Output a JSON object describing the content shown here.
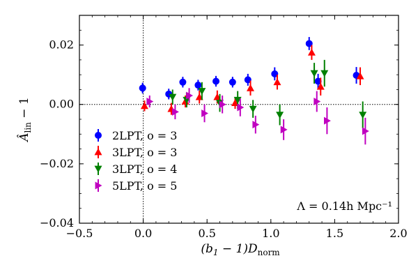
{
  "chart_data": {
    "type": "scatter",
    "title": "",
    "xlabel": "(b₁ − 1)D_norm",
    "xlabel_parts": {
      "lead": "(b",
      "sub1": "1",
      "mid": " − 1)D",
      "sub2": "norm"
    },
    "ylabel": "Â_lin − 1",
    "ylabel_parts": {
      "lead": "Â",
      "sub": "lin",
      "tail": " − 1"
    },
    "xlim": [
      -0.5,
      2.0
    ],
    "ylim": [
      -0.04,
      0.03
    ],
    "xticks": [
      -0.5,
      0.0,
      0.5,
      1.0,
      1.5,
      2.0
    ],
    "xtick_labels": [
      "−0.5",
      "0.0",
      "0.5",
      "1.0",
      "1.5",
      "2.0"
    ],
    "yticks": [
      -0.04,
      -0.02,
      0.0,
      0.02
    ],
    "ytick_labels": [
      "−0.04",
      "−0.02",
      "0.00",
      "0.02"
    ],
    "hline": 0.0,
    "vline": 0.0,
    "annotation": "Λ = 0.14h Mpc⁻¹",
    "legend_position": "lower-left",
    "series": [
      {
        "name": "2LPT, o = 3",
        "color": "#0000ff",
        "marker": "circle",
        "points": [
          {
            "x": -0.005,
            "y": 0.0055,
            "err": 0.0018
          },
          {
            "x": 0.2,
            "y": 0.0035,
            "err": 0.0018
          },
          {
            "x": 0.31,
            "y": 0.0075,
            "err": 0.0018
          },
          {
            "x": 0.43,
            "y": 0.0065,
            "err": 0.0018
          },
          {
            "x": 0.57,
            "y": 0.0078,
            "err": 0.0018
          },
          {
            "x": 0.7,
            "y": 0.0075,
            "err": 0.0018
          },
          {
            "x": 0.82,
            "y": 0.0083,
            "err": 0.002
          },
          {
            "x": 1.03,
            "y": 0.0103,
            "err": 0.0022
          },
          {
            "x": 1.3,
            "y": 0.0205,
            "err": 0.0022
          },
          {
            "x": 1.37,
            "y": 0.0078,
            "err": 0.0025
          },
          {
            "x": 1.67,
            "y": 0.0098,
            "err": 0.0028
          }
        ]
      },
      {
        "name": "3LPT, o = 3",
        "color": "#ff0000",
        "marker": "triangle-up",
        "points": [
          {
            "x": 0.01,
            "y": -0.0005,
            "err": 0.0018
          },
          {
            "x": 0.22,
            "y": -0.0015,
            "err": 0.002
          },
          {
            "x": 0.33,
            "y": 0.001,
            "err": 0.002
          },
          {
            "x": 0.44,
            "y": 0.0025,
            "err": 0.0022
          },
          {
            "x": 0.58,
            "y": 0.0025,
            "err": 0.0022
          },
          {
            "x": 0.72,
            "y": 0.0005,
            "err": 0.002
          },
          {
            "x": 0.84,
            "y": 0.0055,
            "err": 0.0025
          },
          {
            "x": 1.05,
            "y": 0.0075,
            "err": 0.0025
          },
          {
            "x": 1.32,
            "y": 0.0175,
            "err": 0.0025
          },
          {
            "x": 1.39,
            "y": 0.006,
            "err": 0.003
          },
          {
            "x": 1.7,
            "y": 0.0095,
            "err": 0.003
          }
        ]
      },
      {
        "name": "3LPT, o = 4",
        "color": "#008000",
        "marker": "triangle-down",
        "points": [
          {
            "x": 0.23,
            "y": 0.0025,
            "err": 0.0025
          },
          {
            "x": 0.34,
            "y": 0.0015,
            "err": 0.0025
          },
          {
            "x": 0.46,
            "y": 0.0045,
            "err": 0.003
          },
          {
            "x": 0.6,
            "y": 0.0005,
            "err": 0.003
          },
          {
            "x": 0.74,
            "y": 0.0015,
            "err": 0.003
          },
          {
            "x": 0.86,
            "y": -0.0015,
            "err": 0.003
          },
          {
            "x": 1.07,
            "y": -0.0035,
            "err": 0.0035
          },
          {
            "x": 1.34,
            "y": 0.0105,
            "err": 0.0035
          },
          {
            "x": 1.42,
            "y": 0.0105,
            "err": 0.0045
          },
          {
            "x": 1.72,
            "y": -0.0035,
            "err": 0.0045
          }
        ]
      },
      {
        "name": "5LPT, o = 5",
        "color": "#c000c0",
        "marker": "triangle-right",
        "points": [
          {
            "x": 0.05,
            "y": 0.001,
            "err": 0.002
          },
          {
            "x": 0.25,
            "y": -0.0025,
            "err": 0.0025
          },
          {
            "x": 0.36,
            "y": 0.003,
            "err": 0.0025
          },
          {
            "x": 0.48,
            "y": -0.003,
            "err": 0.003
          },
          {
            "x": 0.62,
            "y": 0.0,
            "err": 0.003
          },
          {
            "x": 0.76,
            "y": -0.001,
            "err": 0.003
          },
          {
            "x": 0.88,
            "y": -0.0068,
            "err": 0.003
          },
          {
            "x": 1.1,
            "y": -0.0085,
            "err": 0.0035
          },
          {
            "x": 1.36,
            "y": 0.001,
            "err": 0.0035
          },
          {
            "x": 1.44,
            "y": -0.0055,
            "err": 0.0045
          },
          {
            "x": 1.74,
            "y": -0.009,
            "err": 0.0045
          }
        ]
      }
    ]
  }
}
